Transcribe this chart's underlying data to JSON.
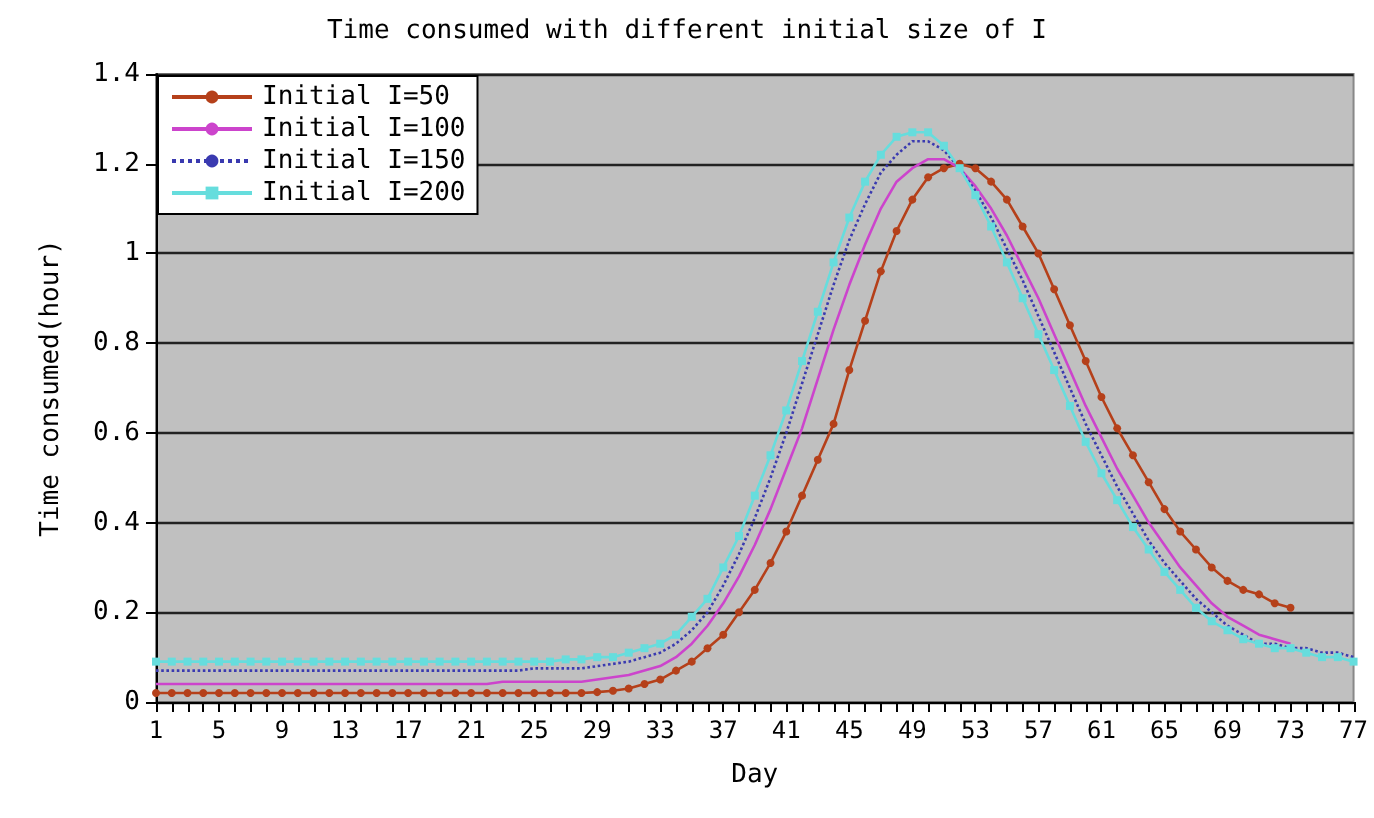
{
  "chart_data": {
    "type": "line",
    "title": "Time consumed with different initial size of I",
    "xlabel": "Day",
    "ylabel": "Time consumed(hour)",
    "categories": [
      "1",
      null,
      null,
      null,
      "5",
      null,
      null,
      null,
      "9",
      null,
      null,
      null,
      "13",
      null,
      null,
      null,
      "17",
      null,
      null,
      null,
      "21",
      null,
      null,
      null,
      "25",
      null,
      null,
      null,
      "29",
      null,
      null,
      null,
      "33",
      null,
      null,
      null,
      "37",
      null,
      null,
      null,
      "41",
      null,
      null,
      null,
      "45",
      null,
      null,
      null,
      "49",
      null,
      null,
      null,
      "53",
      null,
      null,
      null,
      "57",
      null,
      null,
      null,
      "61",
      null,
      null,
      null,
      "65",
      null,
      null,
      null,
      "69",
      null,
      null,
      null,
      "73",
      null,
      null,
      null,
      "77"
    ],
    "ylim": [
      0,
      1.4
    ],
    "yticks": [
      0,
      0.2,
      0.4,
      0.6,
      0.8,
      1,
      1.2,
      1.4
    ],
    "grid": "y",
    "legend": "top left",
    "series": [
      {
        "name": "Initial I=50",
        "color": "#b5401a",
        "marker": "circle",
        "line_style": "solid",
        "values": [
          0.02,
          0.02,
          0.02,
          0.02,
          0.02,
          0.02,
          0.02,
          0.02,
          0.02,
          0.02,
          0.02,
          0.02,
          0.02,
          0.02,
          0.02,
          0.02,
          0.02,
          0.02,
          0.02,
          0.02,
          0.02,
          0.02,
          0.02,
          0.02,
          0.02,
          0.02,
          0.02,
          0.02,
          0.022,
          0.025,
          0.03,
          0.04,
          0.05,
          0.07,
          0.09,
          0.12,
          0.15,
          0.2,
          0.25,
          0.31,
          0.38,
          0.46,
          0.54,
          0.62,
          0.74,
          0.85,
          0.96,
          1.05,
          1.12,
          1.17,
          1.19,
          1.2,
          1.19,
          1.16,
          1.12,
          1.06,
          1.0,
          0.92,
          0.84,
          0.76,
          0.68,
          0.61,
          0.55,
          0.49,
          0.43,
          0.38,
          0.34,
          0.3,
          0.27,
          0.25,
          0.24,
          0.22,
          0.21,
          null,
          null,
          null,
          null
        ]
      },
      {
        "name": "Initial I=100",
        "color": "#cc44cc",
        "marker": "none",
        "line_style": "solid",
        "values": [
          0.04,
          0.04,
          0.04,
          0.04,
          0.04,
          0.04,
          0.04,
          0.04,
          0.04,
          0.04,
          0.04,
          0.04,
          0.04,
          0.04,
          0.04,
          0.04,
          0.04,
          0.04,
          0.04,
          0.04,
          0.04,
          0.04,
          0.045,
          0.045,
          0.045,
          0.045,
          0.045,
          0.045,
          0.05,
          0.055,
          0.06,
          0.07,
          0.08,
          0.1,
          0.13,
          0.17,
          0.22,
          0.28,
          0.35,
          0.43,
          0.52,
          0.61,
          0.72,
          0.83,
          0.93,
          1.02,
          1.1,
          1.16,
          1.19,
          1.21,
          1.21,
          1.19,
          1.15,
          1.1,
          1.04,
          0.97,
          0.9,
          0.82,
          0.74,
          0.66,
          0.59,
          0.52,
          0.46,
          0.4,
          0.35,
          0.3,
          0.26,
          0.22,
          0.19,
          0.17,
          0.15,
          0.14,
          0.13,
          null,
          null,
          null,
          null
        ]
      },
      {
        "name": "Initial I=150",
        "color": "#3a3ab0",
        "marker": "none",
        "line_style": "dotted",
        "values": [
          0.07,
          0.07,
          0.07,
          0.07,
          0.07,
          0.07,
          0.07,
          0.07,
          0.07,
          0.07,
          0.07,
          0.07,
          0.07,
          0.07,
          0.07,
          0.07,
          0.07,
          0.07,
          0.07,
          0.07,
          0.07,
          0.07,
          0.07,
          0.07,
          0.075,
          0.075,
          0.075,
          0.075,
          0.08,
          0.085,
          0.09,
          0.1,
          0.11,
          0.13,
          0.16,
          0.2,
          0.26,
          0.33,
          0.41,
          0.5,
          0.6,
          0.71,
          0.82,
          0.93,
          1.03,
          1.11,
          1.18,
          1.22,
          1.25,
          1.25,
          1.23,
          1.19,
          1.14,
          1.08,
          1.01,
          0.94,
          0.86,
          0.78,
          0.7,
          0.62,
          0.55,
          0.48,
          0.42,
          0.36,
          0.31,
          0.27,
          0.23,
          0.2,
          0.17,
          0.15,
          0.13,
          0.13,
          0.12,
          0.12,
          0.11,
          0.11,
          0.1
        ]
      },
      {
        "name": "Initial I=200",
        "color": "#66dddd",
        "marker": "square",
        "line_style": "solid",
        "values": [
          0.09,
          0.09,
          0.09,
          0.09,
          0.09,
          0.09,
          0.09,
          0.09,
          0.09,
          0.09,
          0.09,
          0.09,
          0.09,
          0.09,
          0.09,
          0.09,
          0.09,
          0.09,
          0.09,
          0.09,
          0.09,
          0.09,
          0.09,
          0.09,
          0.09,
          0.09,
          0.095,
          0.095,
          0.1,
          0.1,
          0.11,
          0.12,
          0.13,
          0.15,
          0.19,
          0.23,
          0.3,
          0.37,
          0.46,
          0.55,
          0.65,
          0.76,
          0.87,
          0.98,
          1.08,
          1.16,
          1.22,
          1.26,
          1.27,
          1.27,
          1.24,
          1.19,
          1.13,
          1.06,
          0.98,
          0.9,
          0.82,
          0.74,
          0.66,
          0.58,
          0.51,
          0.45,
          0.39,
          0.34,
          0.29,
          0.25,
          0.21,
          0.18,
          0.16,
          0.14,
          0.13,
          0.12,
          0.12,
          0.11,
          0.1,
          0.1,
          0.09
        ]
      }
    ]
  }
}
